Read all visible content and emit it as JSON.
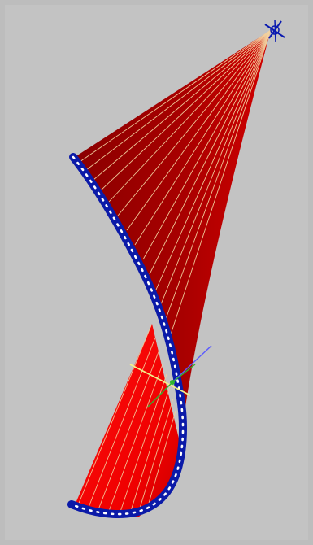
{
  "viewport": {
    "description": "",
    "background_color": "#c3c3c3"
  },
  "colors": {
    "upper_surface_dark": "#8f0000",
    "upper_surface_light": "#c70000",
    "lower_surface": "#ff0000",
    "lower_surface_shade": "#d90000",
    "ruling_line": "#f2d2a0",
    "curve_blue": "#0b1aa8",
    "curve_dots": "#ffffff",
    "gizmo_yellow": "#f2f28a",
    "gizmo_green": "#2db52d",
    "gizmo_blue": "#3c3cff",
    "apex_marker": "#0a1ab0"
  },
  "icons": {
    "apex": "target-crosshair-icon",
    "gizmo": "transform-gizmo-icon"
  }
}
